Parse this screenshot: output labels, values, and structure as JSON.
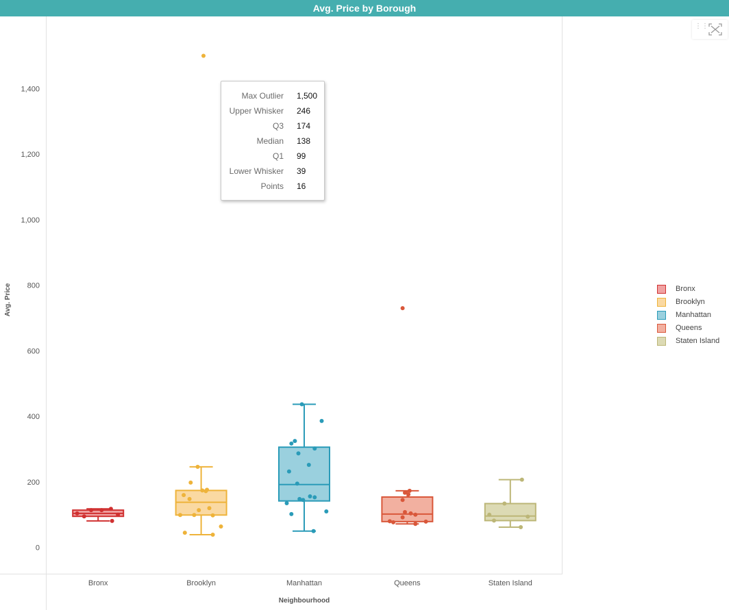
{
  "chart_data": {
    "type": "boxplot",
    "title": "Avg. Price by Borough",
    "xlabel": "Neighbourhood",
    "ylabel": "Avg. Price",
    "ylim": [
      -80,
      1620
    ],
    "yticks": [
      0,
      200,
      400,
      600,
      800,
      1000,
      1200,
      1400
    ],
    "ytick_labels": [
      "0",
      "200",
      "400",
      "600",
      "800",
      "1,000",
      "1,200",
      "1,400"
    ],
    "grid": false,
    "legend_position": "right",
    "categories": [
      "Bronx",
      "Brooklyn",
      "Manhattan",
      "Queens",
      "Staten Island"
    ],
    "series": [
      {
        "name": "Bronx",
        "color": "#d03030",
        "fill": "#f0a2a2",
        "box": {
          "lower_whisker": 81,
          "q1": 95,
          "median": 104,
          "q3": 114,
          "upper_whisker": 118
        },
        "outliers": [],
        "points": [
          {
            "value": 95,
            "jitter": -0.6
          },
          {
            "value": 104,
            "jitter": -0.9
          },
          {
            "value": 114,
            "jitter": -0.3
          },
          {
            "value": 114,
            "jitter": 0.15
          },
          {
            "value": 118,
            "jitter": 0.55
          },
          {
            "value": 100,
            "jitter": 0.85
          },
          {
            "value": 81,
            "jitter": 0.6
          }
        ]
      },
      {
        "name": "Brooklyn",
        "color": "#eeb33a",
        "fill": "#fad9a2",
        "box": {
          "lower_whisker": 39,
          "q1": 99,
          "median": 138,
          "q3": 174,
          "upper_whisker": 246
        },
        "outliers": [
          1500
        ],
        "points": [
          {
            "value": 246,
            "jitter": -0.15
          },
          {
            "value": 198,
            "jitter": -0.45
          },
          {
            "value": 174,
            "jitter": 0.05
          },
          {
            "value": 176,
            "jitter": 0.25
          },
          {
            "value": 172,
            "jitter": 0.2
          },
          {
            "value": 160,
            "jitter": -0.75
          },
          {
            "value": 148,
            "jitter": -0.5
          },
          {
            "value": 120,
            "jitter": 0.35
          },
          {
            "value": 114,
            "jitter": -0.1
          },
          {
            "value": 99,
            "jitter": -0.9
          },
          {
            "value": 98,
            "jitter": 0.5
          },
          {
            "value": 99,
            "jitter": -0.3
          },
          {
            "value": 64,
            "jitter": 0.85
          },
          {
            "value": 45,
            "jitter": -0.7
          },
          {
            "value": 39,
            "jitter": 0.5
          },
          {
            "value": 1500,
            "jitter": 0.1
          }
        ]
      },
      {
        "name": "Manhattan",
        "color": "#2a9bb8",
        "fill": "#9ad0de",
        "box": {
          "lower_whisker": 50,
          "q1": 142,
          "median": 192,
          "q3": 306,
          "upper_whisker": 437
        },
        "outliers": [],
        "points": [
          {
            "value": 437,
            "jitter": -0.1
          },
          {
            "value": 386,
            "jitter": 0.75
          },
          {
            "value": 325,
            "jitter": -0.4
          },
          {
            "value": 317,
            "jitter": -0.55
          },
          {
            "value": 302,
            "jitter": 0.45
          },
          {
            "value": 287,
            "jitter": -0.25
          },
          {
            "value": 252,
            "jitter": 0.2
          },
          {
            "value": 232,
            "jitter": -0.65
          },
          {
            "value": 195,
            "jitter": -0.3
          },
          {
            "value": 156,
            "jitter": 0.25
          },
          {
            "value": 153,
            "jitter": 0.45
          },
          {
            "value": 148,
            "jitter": -0.2
          },
          {
            "value": 145,
            "jitter": -0.05
          },
          {
            "value": 135,
            "jitter": -0.75
          },
          {
            "value": 110,
            "jitter": 0.95
          },
          {
            "value": 102,
            "jitter": -0.55
          },
          {
            "value": 50,
            "jitter": 0.4
          }
        ]
      },
      {
        "name": "Queens",
        "color": "#d9573a",
        "fill": "#f2b0a0",
        "box": {
          "lower_whisker": 72,
          "q1": 79,
          "median": 102,
          "q3": 154,
          "upper_whisker": 173
        },
        "outliers": [
          730
        ],
        "points": [
          {
            "value": 173,
            "jitter": 0.1
          },
          {
            "value": 167,
            "jitter": -0.1
          },
          {
            "value": 162,
            "jitter": 0.05
          },
          {
            "value": 145,
            "jitter": -0.2
          },
          {
            "value": 108,
            "jitter": -0.1
          },
          {
            "value": 104,
            "jitter": 0.15
          },
          {
            "value": 100,
            "jitter": 0.35
          },
          {
            "value": 92,
            "jitter": -0.2
          },
          {
            "value": 80,
            "jitter": -0.75
          },
          {
            "value": 79,
            "jitter": 0.8
          },
          {
            "value": 77,
            "jitter": -0.6
          },
          {
            "value": 72,
            "jitter": 0.35
          },
          {
            "value": 730,
            "jitter": -0.2
          }
        ]
      },
      {
        "name": "Staten Island",
        "color": "#bcb677",
        "fill": "#dcdab4",
        "box": {
          "lower_whisker": 62,
          "q1": 82,
          "median": 96,
          "q3": 134,
          "upper_whisker": 207
        },
        "outliers": [],
        "points": [
          {
            "value": 207,
            "jitter": 0.5
          },
          {
            "value": 134,
            "jitter": -0.25
          },
          {
            "value": 100,
            "jitter": -0.9
          },
          {
            "value": 94,
            "jitter": 0.75
          },
          {
            "value": 82,
            "jitter": -0.7
          },
          {
            "value": 62,
            "jitter": 0.45
          }
        ]
      }
    ],
    "tooltip": {
      "series": "Brooklyn",
      "rows": [
        {
          "label": "Max Outlier",
          "value": "1,500"
        },
        {
          "label": "Upper Whisker",
          "value": "246"
        },
        {
          "label": "Q3",
          "value": "174"
        },
        {
          "label": "Median",
          "value": "138"
        },
        {
          "label": "Q1",
          "value": "99"
        },
        {
          "label": "Lower Whisker",
          "value": "39"
        },
        {
          "label": "Points",
          "value": "16"
        }
      ]
    }
  },
  "toolbar": {
    "drag_icon": "drag-handle-icon",
    "fullscreen_icon": "fullscreen-icon"
  }
}
